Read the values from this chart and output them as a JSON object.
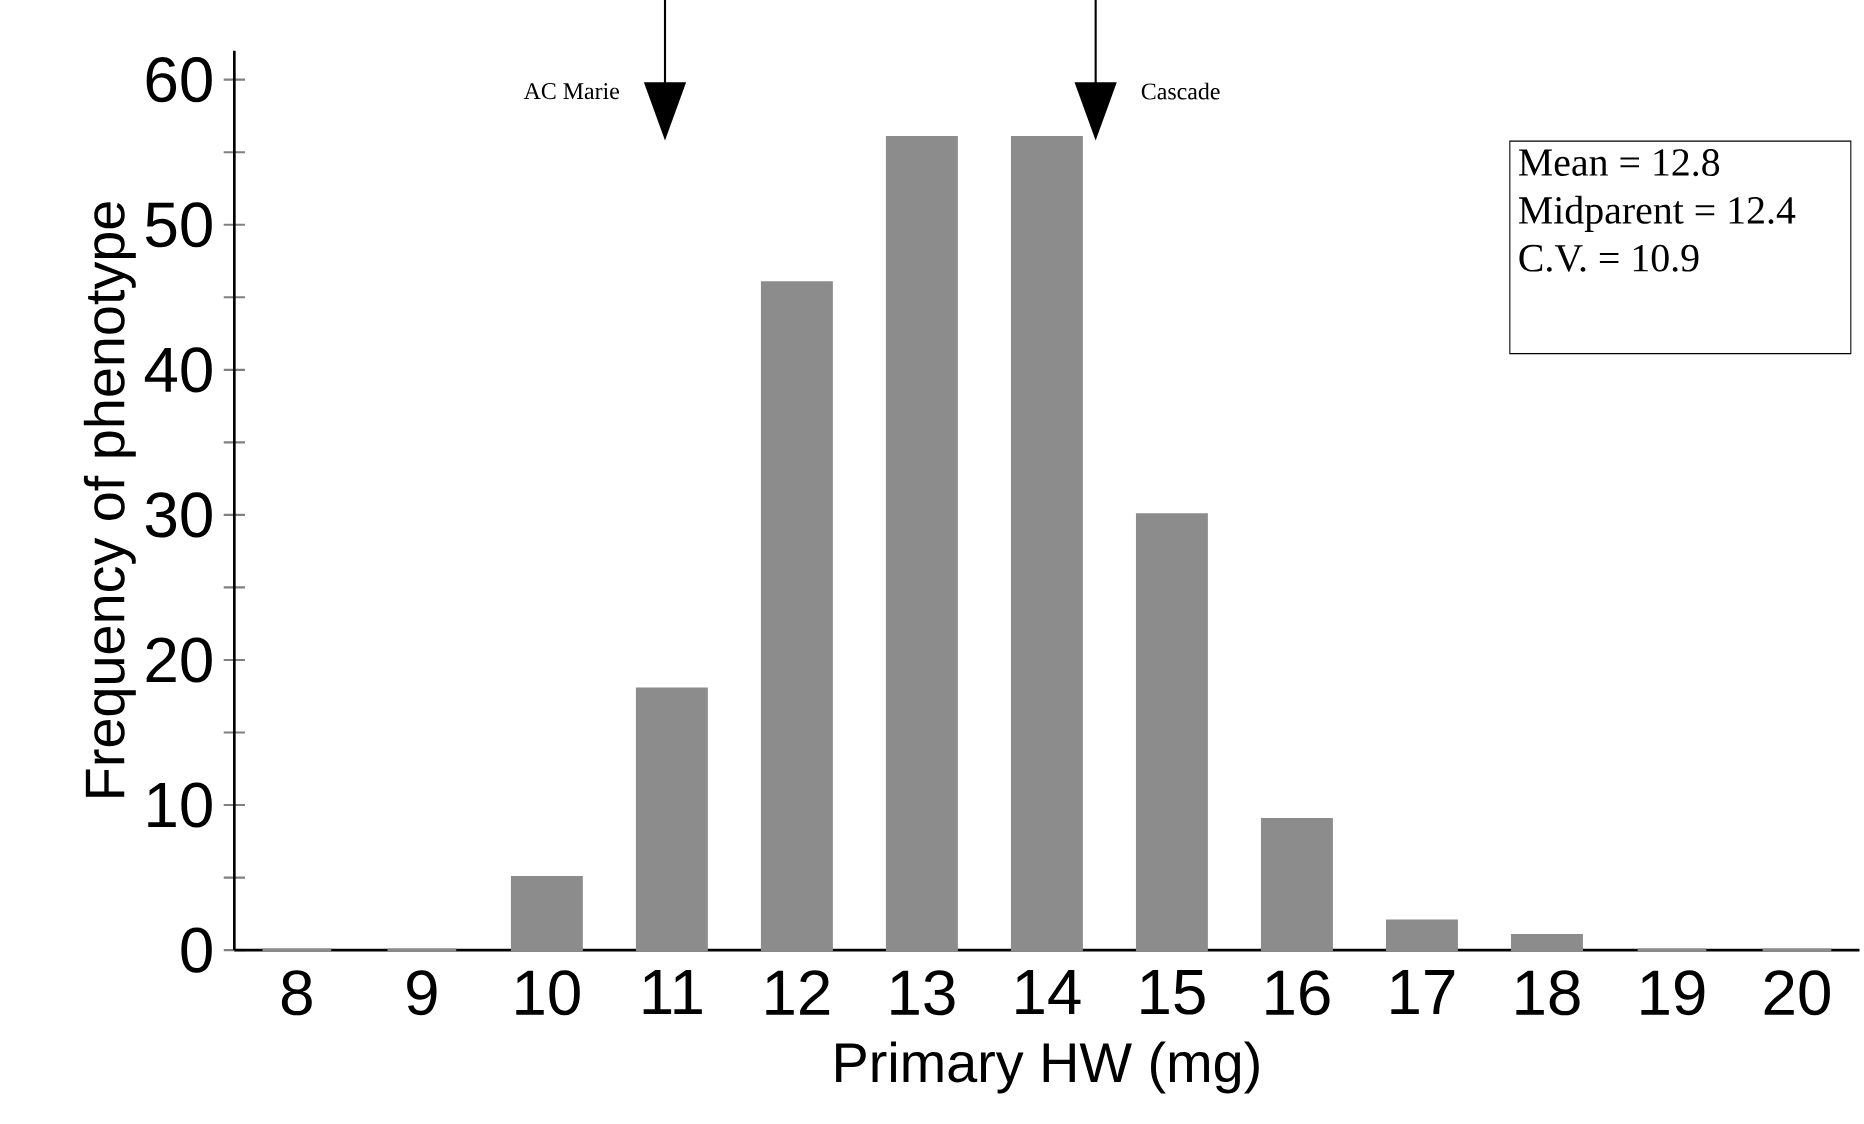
{
  "chart_data": {
    "type": "bar",
    "xlabel": "Primary HW (mg)",
    "ylabel": "Frequency of phenotype",
    "categories": [
      "8",
      "9",
      "10",
      "11",
      "12",
      "13",
      "14",
      "15",
      "16",
      "17",
      "18",
      "19",
      "20"
    ],
    "values": [
      0,
      0,
      5,
      18,
      46,
      56,
      56,
      30,
      9,
      2,
      1,
      0,
      0
    ],
    "color": "#8c8c8c",
    "ylim": [
      0,
      62
    ],
    "yticks": [
      0,
      {
        "value": 5,
        "label": null
      },
      10,
      {
        "value": 15,
        "label": null
      },
      20,
      {
        "value": 25,
        "label": null
      },
      30,
      {
        "value": 35,
        "label": null
      },
      40,
      {
        "value": 45,
        "label": null
      },
      50,
      {
        "value": 55,
        "label": null
      },
      60
    ],
    "grid": false,
    "annotations": [
      "AC Marie",
      "Cascade",
      "Mean = 12.8",
      "Midparent = 12.4",
      "C.V. = 10.9"
    ]
  }
}
